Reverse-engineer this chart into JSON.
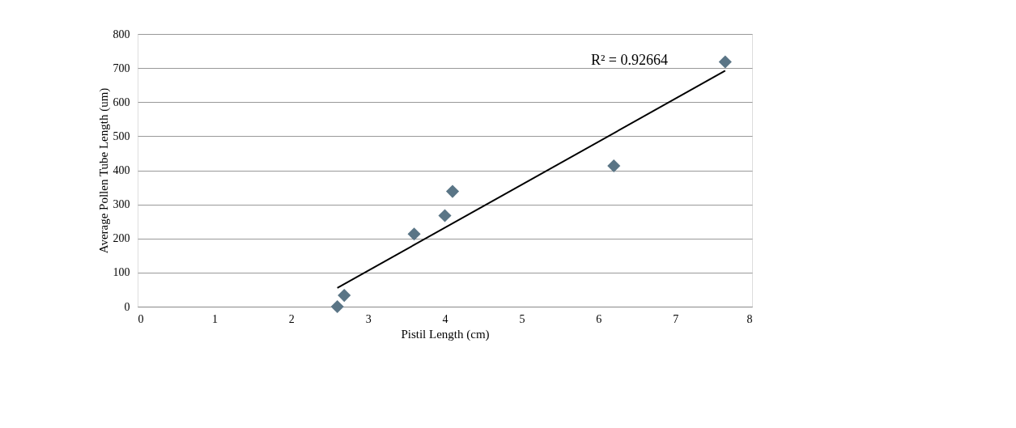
{
  "chart_data": {
    "type": "scatter",
    "xlabel": "Pistil Length (cm)",
    "ylabel": "Average Pollen Tube Length (um)",
    "xlim": [
      0,
      8
    ],
    "xticks": [
      0,
      1,
      2,
      3,
      4,
      5,
      6,
      7,
      8
    ],
    "ylim": [
      0,
      800
    ],
    "yticks": [
      0,
      100,
      200,
      300,
      400,
      500,
      600,
      700,
      800
    ],
    "grid": "y",
    "marker": "diamond",
    "series": [
      {
        "color": "#5a7586",
        "x": [
          2.6,
          2.69,
          3.6,
          4.0,
          4.1,
          6.2,
          7.65
        ],
        "values": [
          0,
          33,
          213,
          267,
          338,
          413,
          718
        ]
      },
      {
        "type": "line",
        "marker": "none",
        "color": "#000000",
        "x": [
          2.6,
          7.65
        ],
        "values": [
          55,
          692
        ]
      }
    ],
    "annotations": [
      "R² = 0.92664"
    ]
  }
}
